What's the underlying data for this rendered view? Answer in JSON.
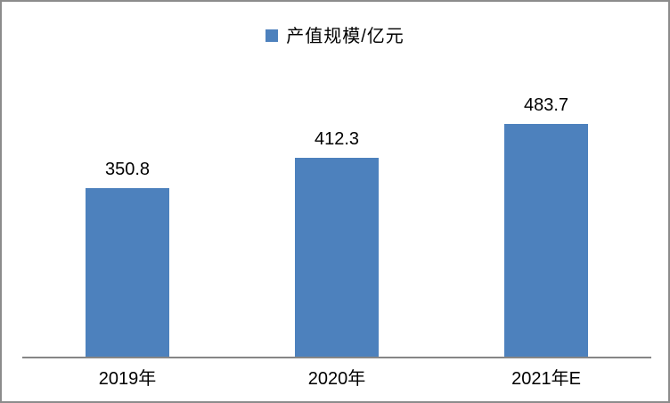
{
  "chart_data": {
    "type": "bar",
    "title": "",
    "legend": "产值规模/亿元",
    "categories": [
      "2019年",
      "2020年",
      "2021年E"
    ],
    "values": [
      350.8,
      412.3,
      483.7
    ],
    "value_labels": [
      "350.8",
      "412.3",
      "483.7"
    ],
    "xlabel": "",
    "ylabel": "",
    "ylim": [
      0,
      550
    ],
    "grid": false,
    "legend_position": "top-center",
    "bar_color": "#4d81bd",
    "axis_color": "#868686",
    "frame_border_color": "#8c8c8c",
    "label_color": "#000000"
  }
}
